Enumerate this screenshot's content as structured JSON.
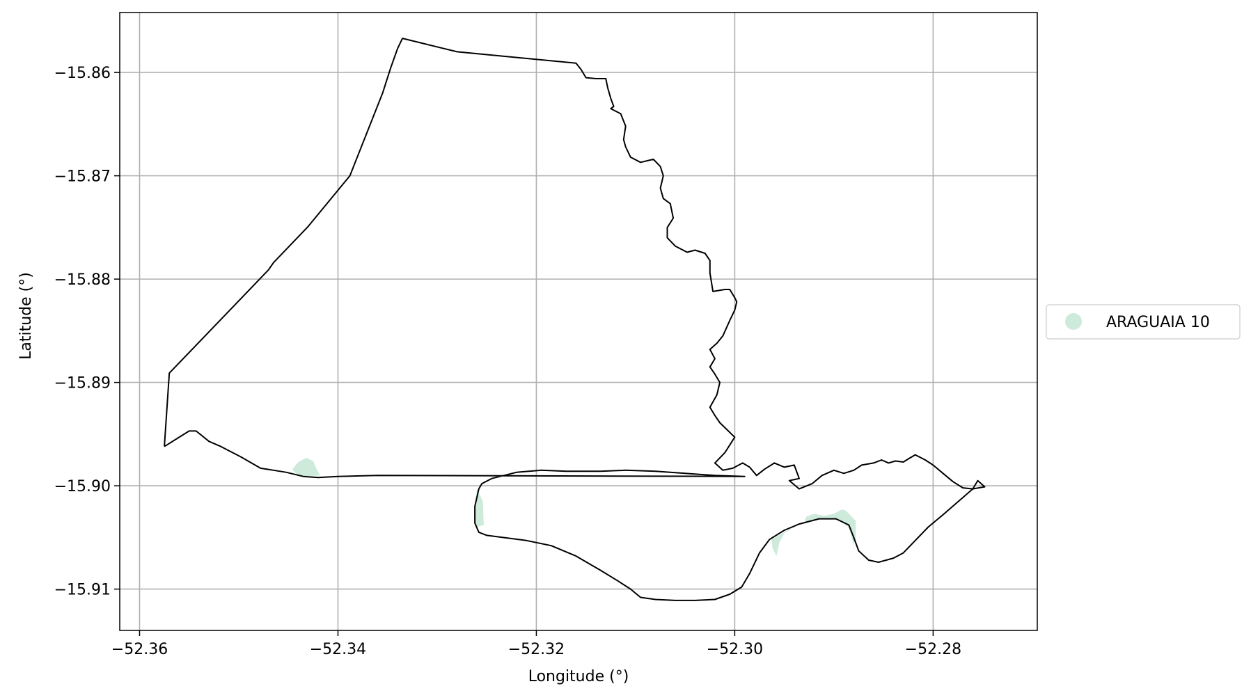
{
  "chart_data": {
    "type": "map",
    "xlabel": "Longitude (°)",
    "ylabel": "Latitude (°)",
    "xlim": [
      -52.362,
      -52.2695
    ],
    "ylim": [
      -15.914,
      -15.8542
    ],
    "xticks": [
      -52.36,
      -52.34,
      -52.32,
      -52.3,
      -52.28
    ],
    "xtick_labels": [
      "−52.36",
      "−52.34",
      "−52.32",
      "−52.30",
      "−52.28"
    ],
    "yticks": [
      -15.86,
      -15.87,
      -15.88,
      -15.89,
      -15.9,
      -15.91
    ],
    "ytick_labels": [
      "−15.86",
      "−15.87",
      "−15.88",
      "−15.89",
      "−15.90",
      "−15.91"
    ],
    "grid": true,
    "legend": {
      "placement": "right, outside axes",
      "entries": [
        {
          "label": "ARAGUAIA 10",
          "color": "#cdeadb"
        }
      ]
    },
    "boundary_color": "#000000",
    "boundary": [
      [
        -52.3575,
        -15.8962
      ],
      [
        -52.357,
        -15.8891
      ],
      [
        -52.3535,
        -15.8856
      ],
      [
        -52.347,
        -15.8791
      ],
      [
        -52.3465,
        -15.8784
      ],
      [
        -52.343,
        -15.8749
      ],
      [
        -52.3388,
        -15.87
      ],
      [
        -52.3355,
        -15.862
      ],
      [
        -52.335,
        -15.8605
      ],
      [
        -52.3347,
        -15.8596
      ],
      [
        -52.334,
        -15.8577
      ],
      [
        -52.3335,
        -15.8567
      ],
      [
        -52.328,
        -15.858
      ],
      [
        -52.316,
        -15.8591
      ],
      [
        -52.3155,
        -15.8597
      ],
      [
        -52.315,
        -15.8605
      ],
      [
        -52.314,
        -15.8606
      ],
      [
        -52.313,
        -15.8606
      ],
      [
        -52.3128,
        -15.8615
      ],
      [
        -52.3125,
        -15.8625
      ],
      [
        -52.3122,
        -15.8633
      ],
      [
        -52.3125,
        -15.8635
      ],
      [
        -52.3115,
        -15.864
      ],
      [
        -52.311,
        -15.8652
      ],
      [
        -52.3112,
        -15.8665
      ],
      [
        -52.311,
        -15.8672
      ],
      [
        -52.3105,
        -15.8682
      ],
      [
        -52.3095,
        -15.8687
      ],
      [
        -52.3082,
        -15.8684
      ],
      [
        -52.3075,
        -15.8691
      ],
      [
        -52.3072,
        -15.87
      ],
      [
        -52.3075,
        -15.8712
      ],
      [
        -52.3072,
        -15.8722
      ],
      [
        -52.3065,
        -15.8727
      ],
      [
        -52.3062,
        -15.8741
      ],
      [
        -52.3068,
        -15.875
      ],
      [
        -52.3068,
        -15.876
      ],
      [
        -52.306,
        -15.8768
      ],
      [
        -52.3048,
        -15.8774
      ],
      [
        -52.304,
        -15.8772
      ],
      [
        -52.303,
        -15.8775
      ],
      [
        -52.3025,
        -15.8782
      ],
      [
        -52.3025,
        -15.8794
      ],
      [
        -52.3022,
        -15.8812
      ],
      [
        -52.301,
        -15.881
      ],
      [
        -52.3005,
        -15.881
      ],
      [
        -52.3,
        -15.8818
      ],
      [
        -52.2998,
        -15.8822
      ],
      [
        -52.3,
        -15.883
      ],
      [
        -52.3005,
        -15.884
      ],
      [
        -52.3012,
        -15.8855
      ],
      [
        -52.3018,
        -15.8862
      ],
      [
        -52.3025,
        -15.8868
      ],
      [
        -52.302,
        -15.8877
      ],
      [
        -52.3025,
        -15.8885
      ],
      [
        -52.302,
        -15.8892
      ],
      [
        -52.3015,
        -15.89
      ],
      [
        -52.3018,
        -15.8912
      ],
      [
        -52.3025,
        -15.8924
      ],
      [
        -52.302,
        -15.8932
      ],
      [
        -52.3015,
        -15.8939
      ],
      [
        -52.3,
        -15.8953
      ],
      [
        -52.301,
        -15.8968
      ],
      [
        -52.302,
        -15.8978
      ],
      [
        -52.3012,
        -15.8985
      ],
      [
        -52.3002,
        -15.8983
      ],
      [
        -52.2992,
        -15.8978
      ],
      [
        -52.2985,
        -15.8982
      ],
      [
        -52.2978,
        -15.899
      ],
      [
        -52.297,
        -15.8984
      ],
      [
        -52.296,
        -15.8978
      ],
      [
        -52.295,
        -15.8982
      ],
      [
        -52.294,
        -15.898
      ],
      [
        -52.2935,
        -15.8993
      ],
      [
        -52.2945,
        -15.8995
      ],
      [
        -52.2935,
        -15.9003
      ],
      [
        -52.2922,
        -15.8998
      ],
      [
        -52.2912,
        -15.899
      ],
      [
        -52.29,
        -15.8985
      ],
      [
        -52.289,
        -15.8988
      ],
      [
        -52.288,
        -15.8985
      ],
      [
        -52.2872,
        -15.898
      ],
      [
        -52.286,
        -15.8978
      ],
      [
        -52.2852,
        -15.8975
      ],
      [
        -52.2845,
        -15.8978
      ],
      [
        -52.2838,
        -15.8976
      ],
      [
        -52.283,
        -15.8977
      ],
      [
        -52.2825,
        -15.8974
      ],
      [
        -52.2818,
        -15.897
      ],
      [
        -52.2808,
        -15.8975
      ],
      [
        -52.28,
        -15.898
      ],
      [
        -52.279,
        -15.8988
      ],
      [
        -52.278,
        -15.8996
      ],
      [
        -52.277,
        -15.9002
      ],
      [
        -52.276,
        -15.9003
      ],
      [
        -52.2755,
        -15.8995
      ],
      [
        -52.2748,
        -15.9001
      ],
      [
        -52.276,
        -15.9003
      ],
      [
        -52.279,
        -15.9028
      ],
      [
        -52.2805,
        -15.904
      ],
      [
        -52.283,
        -15.9065
      ],
      [
        -52.284,
        -15.907
      ],
      [
        -52.2855,
        -15.9074
      ],
      [
        -52.2865,
        -15.9072
      ],
      [
        -52.2875,
        -15.9063
      ],
      [
        -52.288,
        -15.905
      ],
      [
        -52.2885,
        -15.9038
      ],
      [
        -52.2898,
        -15.9032
      ],
      [
        -52.2915,
        -15.9032
      ],
      [
        -52.2935,
        -15.9037
      ],
      [
        -52.295,
        -15.9043
      ],
      [
        -52.2965,
        -15.9052
      ],
      [
        -52.2975,
        -15.9065
      ],
      [
        -52.2985,
        -15.9085
      ],
      [
        -52.2993,
        -15.9098
      ],
      [
        -52.3005,
        -15.9105
      ],
      [
        -52.302,
        -15.911
      ],
      [
        -52.304,
        -15.9111
      ],
      [
        -52.306,
        -15.9111
      ],
      [
        -52.308,
        -15.911
      ],
      [
        -52.3095,
        -15.9108
      ],
      [
        -52.3105,
        -15.91
      ],
      [
        -52.3118,
        -15.9092
      ],
      [
        -52.3135,
        -15.9082
      ],
      [
        -52.316,
        -15.9068
      ],
      [
        -52.3185,
        -15.9058
      ],
      [
        -52.321,
        -15.9053
      ],
      [
        -52.325,
        -15.9048
      ],
      [
        -52.3258,
        -15.9045
      ],
      [
        -52.3262,
        -15.9036
      ],
      [
        -52.3262,
        -15.902
      ],
      [
        -52.3258,
        -15.9003
      ],
      [
        -52.3255,
        -15.8998
      ],
      [
        -52.3245,
        -15.8993
      ],
      [
        -52.322,
        -15.8987
      ],
      [
        -52.3195,
        -15.8985
      ],
      [
        -52.317,
        -15.8986
      ],
      [
        -52.3135,
        -15.8986
      ],
      [
        -52.311,
        -15.8985
      ],
      [
        -52.308,
        -15.8986
      ],
      [
        -52.305,
        -15.8988
      ],
      [
        -52.302,
        -15.899
      ],
      [
        -52.299,
        -15.8991
      ],
      [
        -52.336,
        -15.899
      ],
      [
        -52.34,
        -15.8991
      ],
      [
        -52.342,
        -15.8992
      ],
      [
        -52.3435,
        -15.8991
      ],
      [
        -52.3452,
        -15.8987
      ],
      [
        -52.3465,
        -15.8985
      ],
      [
        -52.3478,
        -15.8983
      ],
      [
        -52.3498,
        -15.8972
      ],
      [
        -52.3518,
        -15.8962
      ],
      [
        -52.353,
        -15.8957
      ],
      [
        -52.3543,
        -15.8947
      ],
      [
        -52.355,
        -15.8947
      ],
      [
        -52.3575,
        -15.8962
      ]
    ],
    "fill_regions": [
      {
        "name": "ARAGUAIA 10",
        "color": "#cdeadb",
        "polygon": [
          [
            -52.3446,
            -15.8984
          ],
          [
            -52.344,
            -15.8977
          ],
          [
            -52.3432,
            -15.8973
          ],
          [
            -52.3425,
            -15.8976
          ],
          [
            -52.3422,
            -15.8983
          ],
          [
            -52.3418,
            -15.899
          ],
          [
            -52.344,
            -15.8991
          ]
        ]
      },
      {
        "name": "ARAGUAIA 10",
        "color": "#cdeadb",
        "polygon": [
          [
            -52.326,
            -15.9003
          ],
          [
            -52.3254,
            -15.9015
          ],
          [
            -52.3253,
            -15.9038
          ],
          [
            -52.3261,
            -15.904
          ],
          [
            -52.3262,
            -15.902
          ]
        ]
      },
      {
        "name": "ARAGUAIA 10",
        "color": "#cdeadb",
        "polygon": [
          [
            -52.2963,
            -15.9052
          ],
          [
            -52.2962,
            -15.906
          ],
          [
            -52.2958,
            -15.9068
          ],
          [
            -52.2955,
            -15.9055
          ],
          [
            -52.295,
            -15.9046
          ],
          [
            -52.2935,
            -15.9037
          ]
        ]
      },
      {
        "name": "ARAGUAIA 10",
        "color": "#cdeadb",
        "polygon": [
          [
            -52.293,
            -15.9036
          ],
          [
            -52.2928,
            -15.903
          ],
          [
            -52.292,
            -15.9027
          ],
          [
            -52.291,
            -15.9029
          ],
          [
            -52.29,
            -15.9027
          ],
          [
            -52.2892,
            -15.9023
          ],
          [
            -52.2888,
            -15.9024
          ],
          [
            -52.2882,
            -15.903
          ],
          [
            -52.2878,
            -15.9034
          ],
          [
            -52.2878,
            -15.905
          ],
          [
            -52.288,
            -15.9058
          ],
          [
            -52.2885,
            -15.904
          ],
          [
            -52.2898,
            -15.9032
          ],
          [
            -52.2915,
            -15.9032
          ]
        ]
      }
    ]
  }
}
